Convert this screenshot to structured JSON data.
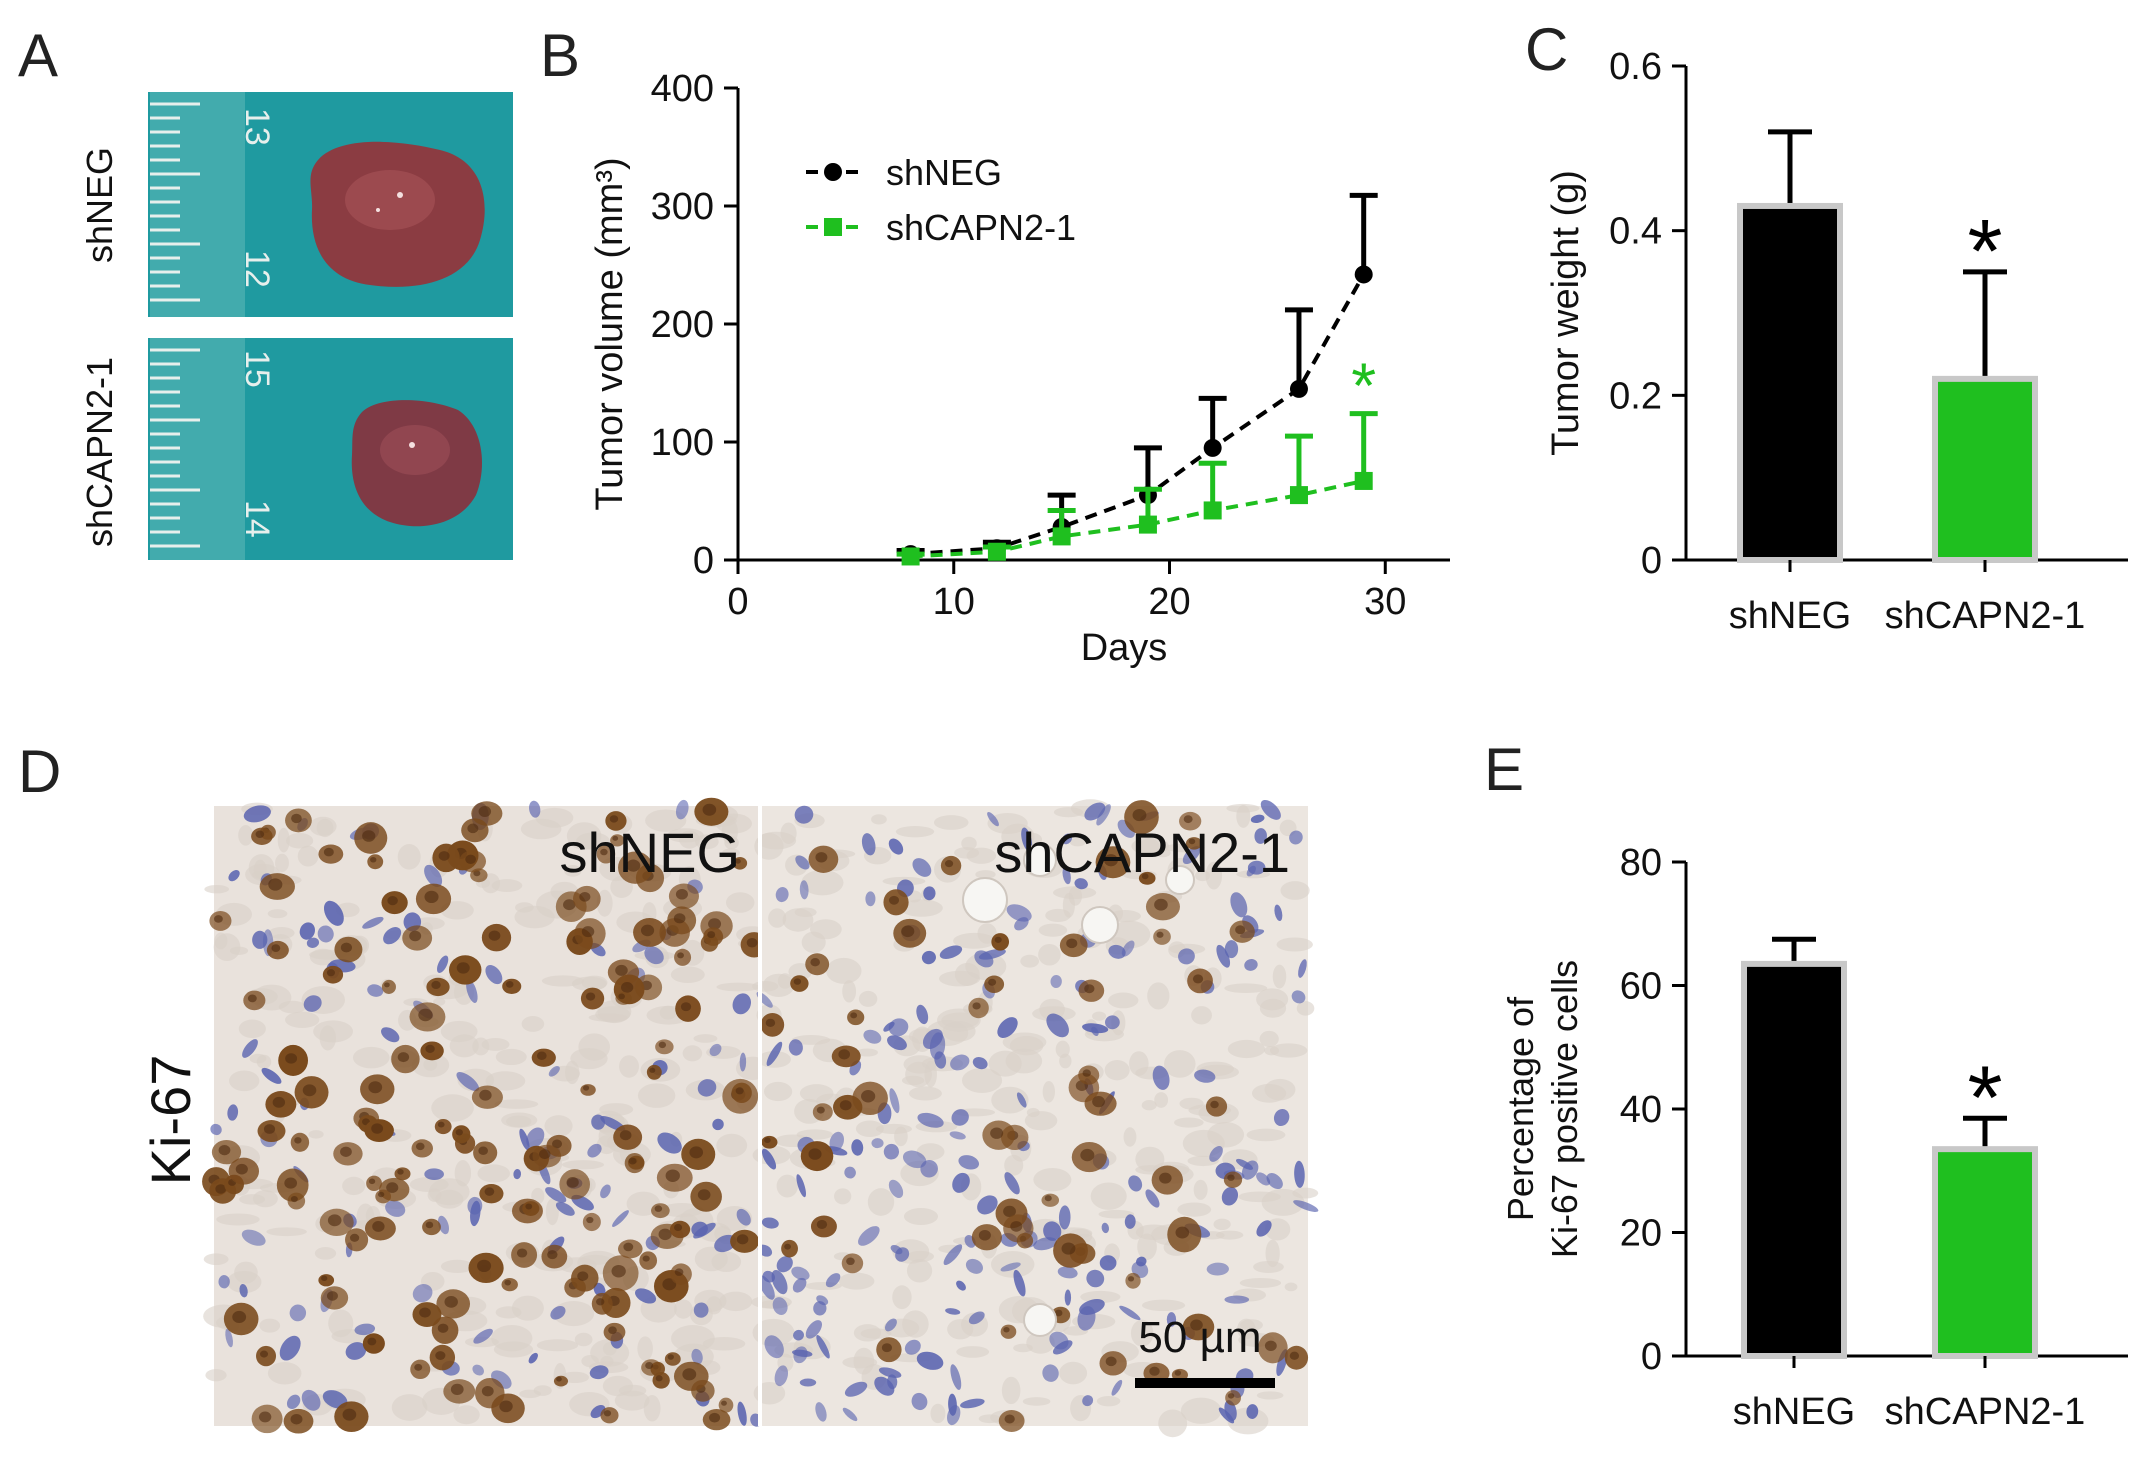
{
  "panels": {
    "A": {
      "label": "A",
      "rows": [
        {
          "label": "shNEG",
          "ruler": [
            "13",
            "12"
          ]
        },
        {
          "label": "shCAPN2-1",
          "ruler": [
            "15",
            "14"
          ]
        }
      ]
    },
    "D": {
      "label": "D",
      "stain_label": "Ki-67",
      "left_label": "shNEG",
      "right_label": "shCAPN2-1",
      "scale_bar": "50 µm"
    }
  },
  "colors": {
    "shNEG": "#000000",
    "shCAPN2-1": "#1fbf1f",
    "bar_outline": "#c8c8c8",
    "tissue_bg": "#e9e2dc",
    "dab": "#7a4a1c",
    "hematoxylin": "#5a64b0",
    "photo_bg": "#1f9aa0",
    "tumor": "#8b3c42"
  },
  "chart_data": [
    {
      "panel": "B",
      "type": "line",
      "xlabel": "Days",
      "ylabel": "Tumor volume (mm³)",
      "xlim": [
        0,
        33
      ],
      "ylim": [
        0,
        400
      ],
      "xticks": [
        "0",
        "10",
        "20",
        "30"
      ],
      "yticks": [
        "0",
        "100",
        "200",
        "300",
        "400"
      ],
      "legend_position": "top-left",
      "significance": "*",
      "series": [
        {
          "name": "shNEG",
          "x": [
            8,
            12,
            15,
            19,
            22,
            26,
            29
          ],
          "y": [
            5,
            10,
            28,
            55,
            95,
            145,
            242
          ],
          "err": [
            3,
            5,
            27,
            40,
            42,
            67,
            67
          ]
        },
        {
          "name": "shCAPN2-1",
          "x": [
            8,
            12,
            15,
            19,
            22,
            26,
            29
          ],
          "y": [
            3,
            7,
            20,
            30,
            42,
            55,
            67
          ],
          "err": [
            2,
            4,
            22,
            30,
            40,
            50,
            57
          ]
        }
      ]
    },
    {
      "panel": "C",
      "type": "bar",
      "ylabel": "Tumor weight (g)",
      "ylim": [
        0,
        0.6
      ],
      "yticks": [
        "0",
        "0.2",
        "0.4",
        "0.6"
      ],
      "categories": [
        "shNEG",
        "shCAPN2-1"
      ],
      "values": [
        0.43,
        0.22
      ],
      "err": [
        0.09,
        0.13
      ],
      "significance": [
        "",
        "*"
      ]
    },
    {
      "panel": "E",
      "type": "bar",
      "ylabel_lines": [
        "Percentage of",
        "Ki-67 positive cells"
      ],
      "ylim": [
        0,
        80
      ],
      "yticks": [
        "0",
        "20",
        "40",
        "60",
        "80"
      ],
      "categories": [
        "shNEG",
        "shCAPN2-1"
      ],
      "values": [
        63.5,
        33.5
      ],
      "err": [
        4,
        5
      ],
      "significance": [
        "",
        "*"
      ]
    }
  ]
}
